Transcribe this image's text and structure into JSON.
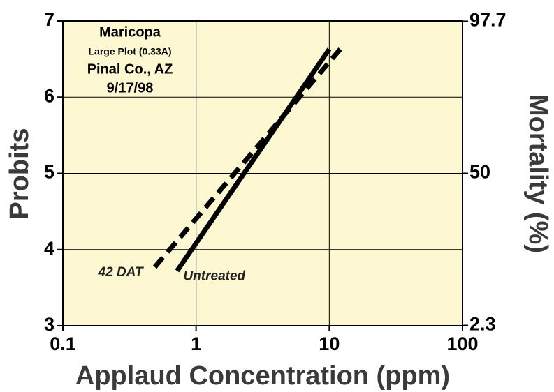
{
  "chart_data": {
    "type": "line",
    "xlabel": "Applaud Concentration (ppm)",
    "ylabel": "Probits",
    "y2label": "Mortality (%)",
    "annotations": [
      "Maricopa",
      "Large Plot (0.33A)",
      "Pinal Co., AZ",
      "9/17/98"
    ],
    "xscale": "log",
    "xlim": [
      0.1,
      100
    ],
    "xticks": [
      0.1,
      1,
      10,
      100
    ],
    "ylim": [
      3,
      7
    ],
    "yticks": [
      3,
      4,
      5,
      6,
      7
    ],
    "y2scale": "probit",
    "y2lim": [
      2.3,
      97.7
    ],
    "y2ticks": [
      2.3,
      50,
      97.7
    ],
    "grid": true,
    "background": "#fdf8d2",
    "series": [
      {
        "name": "Untreated",
        "color": "#000000",
        "style": "solid",
        "x": [
          0.72,
          10
        ],
        "values": [
          3.72,
          6.63
        ]
      },
      {
        "name": "42 DAT",
        "color": "#000000",
        "style": "dashed",
        "x": [
          0.49,
          12.1
        ],
        "values": [
          3.77,
          6.63
        ]
      }
    ]
  }
}
